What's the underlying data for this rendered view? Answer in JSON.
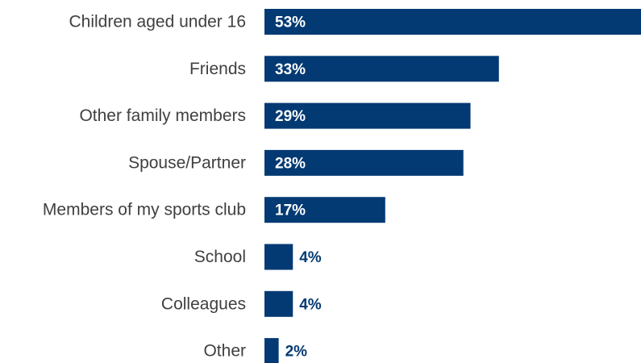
{
  "chart_data": {
    "type": "bar",
    "orientation": "horizontal",
    "categories": [
      "Children aged under 16",
      "Friends",
      "Other family members",
      "Spouse/Partner",
      "Members of my sports club",
      "School",
      "Colleagues",
      "Other"
    ],
    "values": [
      53,
      33,
      29,
      28,
      17,
      4,
      4,
      2
    ],
    "value_labels": [
      "53%",
      "33%",
      "29%",
      "28%",
      "17%",
      "4%",
      "4%",
      "2%"
    ],
    "unit": "%",
    "title": "",
    "xlabel": "",
    "ylabel": "",
    "xlim": [
      0,
      53
    ],
    "grid": false,
    "legend": "none",
    "colors": {
      "bar": "#033A73",
      "label_inside": "#FFFFFF",
      "label_outside": "#033A73",
      "category_text": "#404040"
    }
  }
}
